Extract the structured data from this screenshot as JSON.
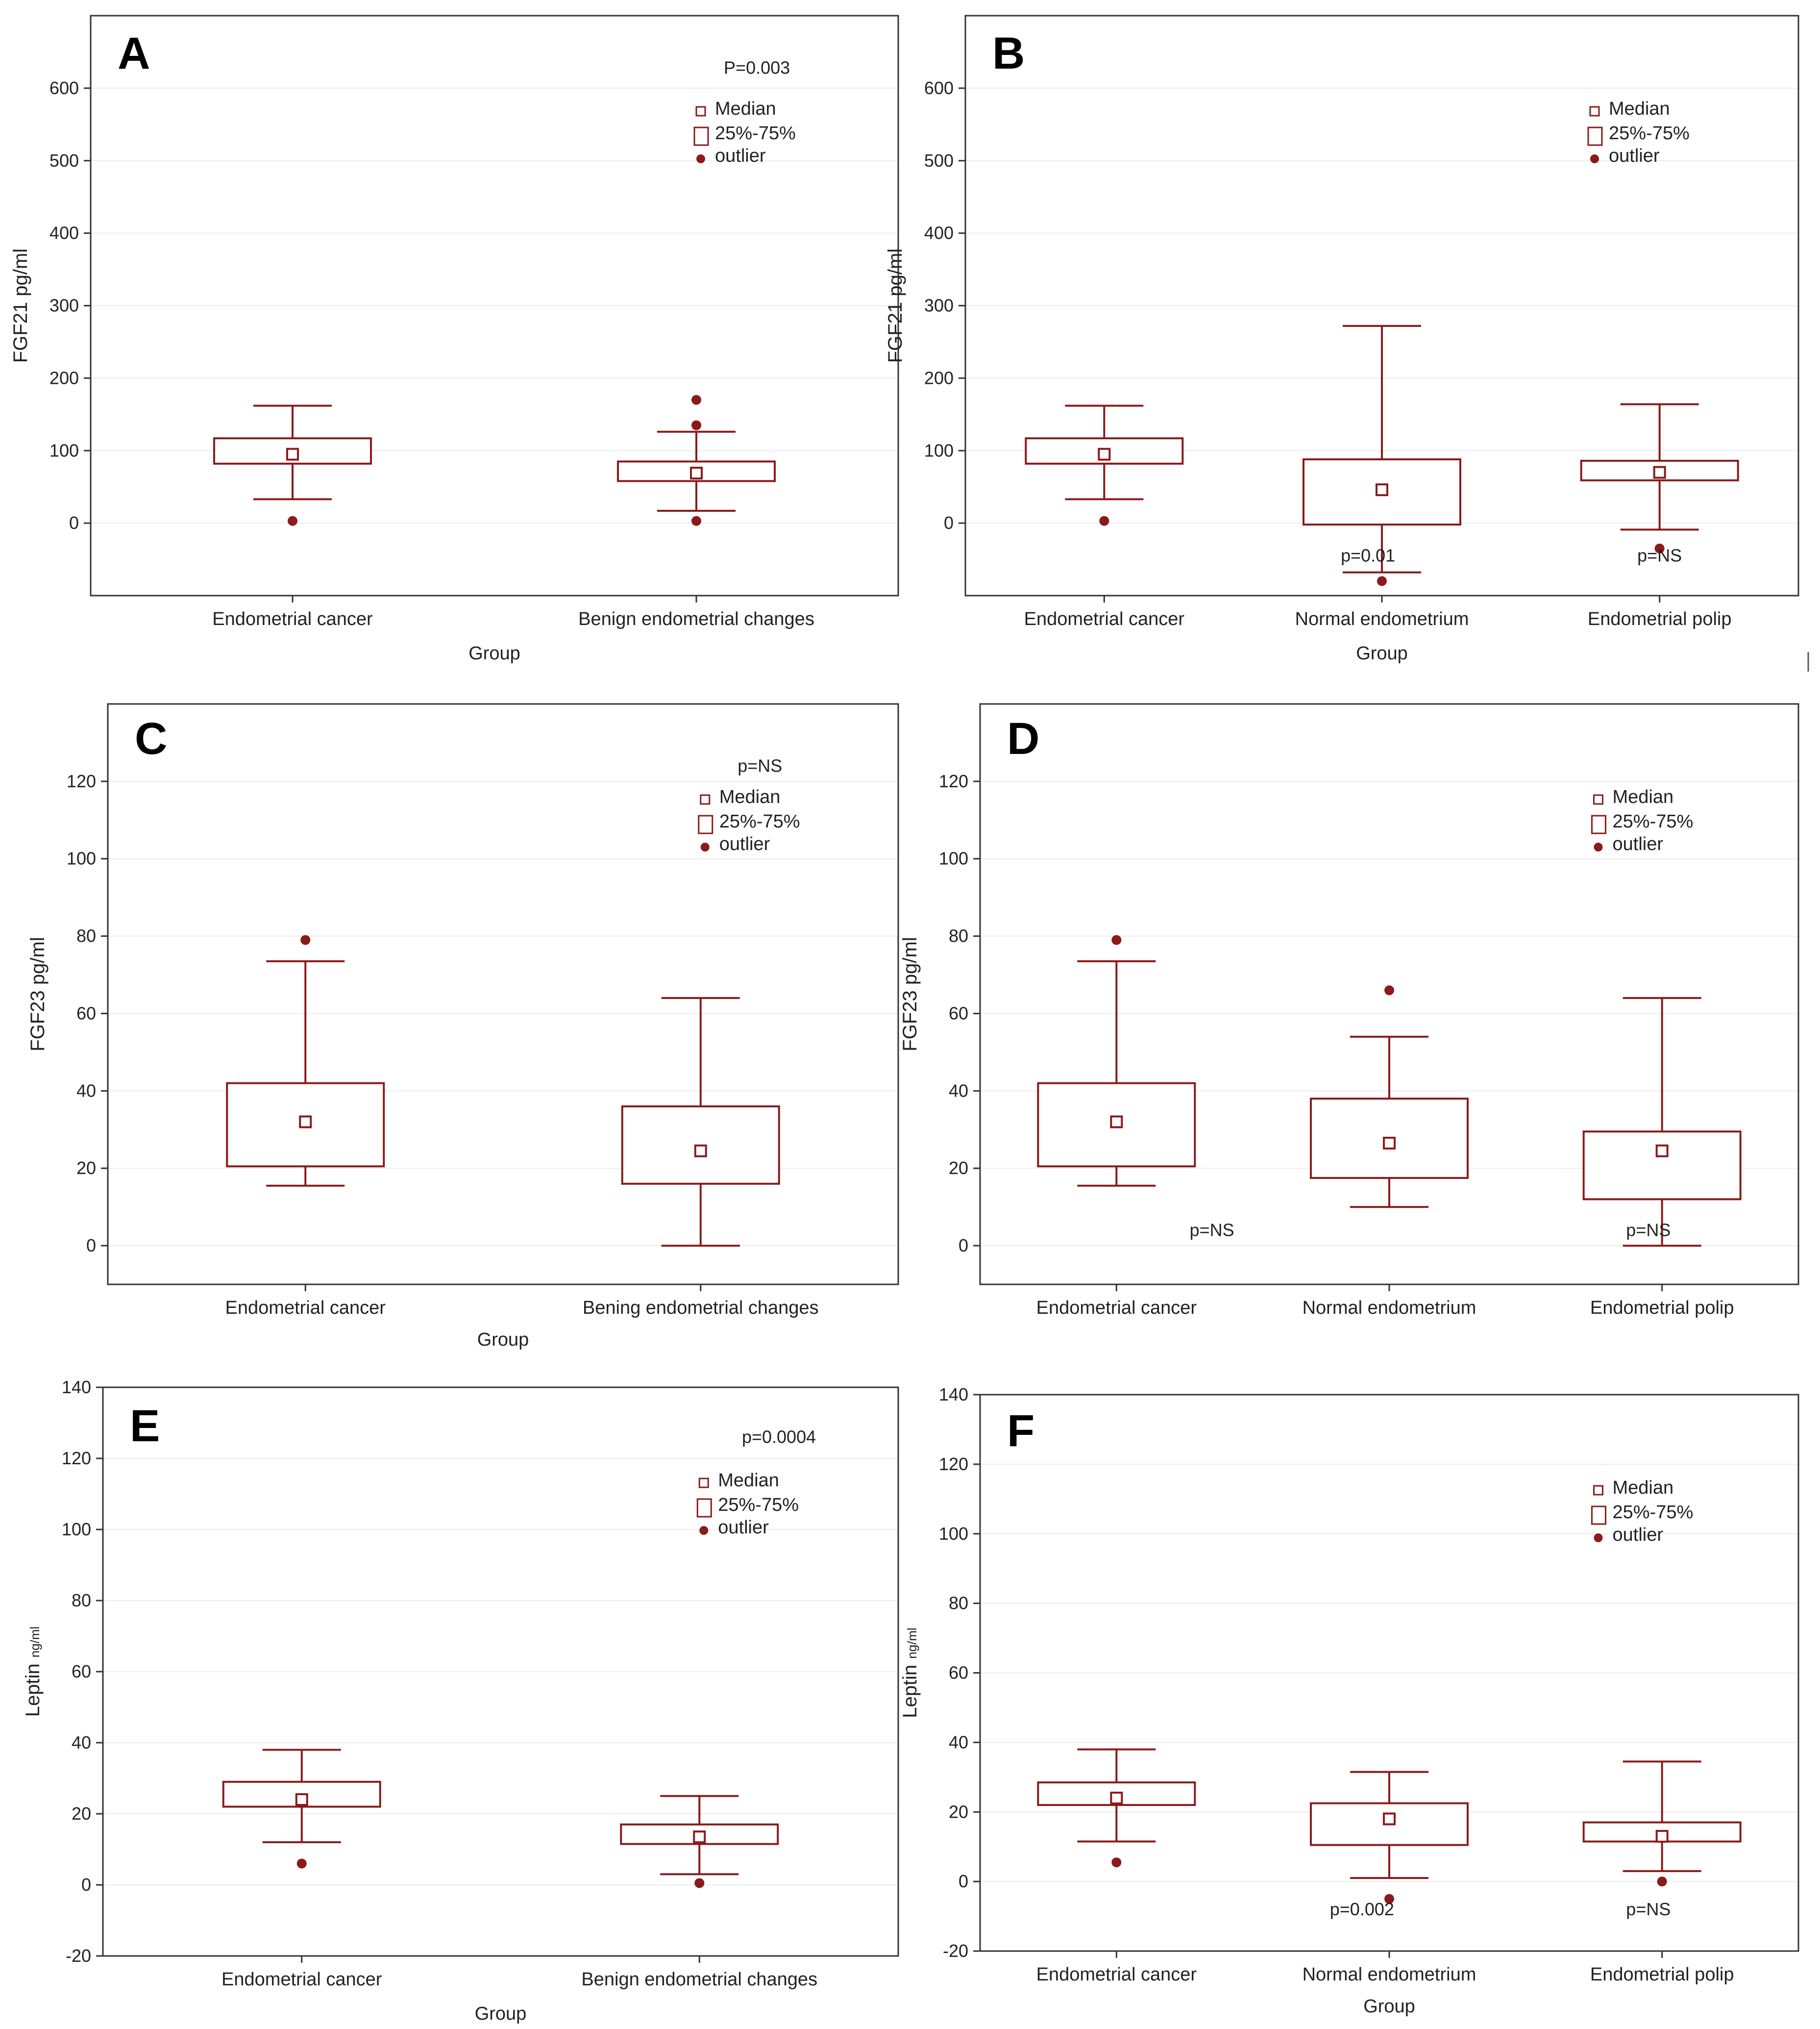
{
  "accent_color": "#8b1a1a",
  "chart_data": [
    {
      "type": "box",
      "panel": "A",
      "ylabel": "FGF21 pg/ml",
      "xlabel": "Group",
      "ylim": [
        -100,
        700
      ],
      "yticks": [
        0,
        100,
        200,
        300,
        400,
        500,
        600
      ],
      "categories": [
        "Endometrial cancer",
        "Benign endometrial changes"
      ],
      "boxes": [
        {
          "median": 95,
          "q1": 82,
          "q3": 117,
          "whisker_low": 33,
          "whisker_high": 162,
          "outliers": [
            3
          ]
        },
        {
          "median": 69,
          "q1": 58,
          "q3": 85,
          "whisker_low": 17,
          "whisker_high": 126,
          "outliers": [
            3,
            135,
            170
          ]
        }
      ],
      "legend": [
        "Median",
        "25%-75%",
        "outlier"
      ],
      "annotations": [
        {
          "text": "P=0.003",
          "x_cat": 1.65,
          "y": 628
        }
      ]
    },
    {
      "type": "box",
      "panel": "B",
      "ylabel": "FGF21 pg/ml",
      "xlabel": "Group",
      "ylim": [
        -100,
        700
      ],
      "yticks": [
        0,
        100,
        200,
        300,
        400,
        500,
        600
      ],
      "categories": [
        "Endometrial cancer",
        "Normal endometrium",
        "Endometrial polip"
      ],
      "boxes": [
        {
          "median": 95,
          "q1": 82,
          "q3": 117,
          "whisker_low": 33,
          "whisker_high": 162,
          "outliers": [
            3
          ]
        },
        {
          "median": 46,
          "q1": -2,
          "q3": 88,
          "whisker_low": -68,
          "whisker_high": 272,
          "outliers": [
            -80
          ]
        },
        {
          "median": 70,
          "q1": 59,
          "q3": 86,
          "whisker_low": -9,
          "whisker_high": 164,
          "outliers": [
            -35
          ]
        }
      ],
      "legend": [
        "Median",
        "25%-75%",
        "outlier"
      ],
      "annotations": [
        {
          "text": "p=0.01",
          "x_cat": 1.45,
          "y": -45
        },
        {
          "text": "p=NS",
          "x_cat": 2.5,
          "y": -45
        }
      ]
    },
    {
      "type": "box",
      "panel": "C",
      "ylabel": "FGF23 pg/ml",
      "xlabel": "Group",
      "ylim": [
        -10,
        140
      ],
      "yticks": [
        0,
        20,
        40,
        60,
        80,
        100,
        120
      ],
      "categories": [
        "Endometrial cancer",
        "Bening endometrial changes"
      ],
      "boxes": [
        {
          "median": 32,
          "q1": 20.5,
          "q3": 42,
          "whisker_low": 15.5,
          "whisker_high": 73.5,
          "outliers": [
            79
          ]
        },
        {
          "median": 24.5,
          "q1": 16,
          "q3": 36,
          "whisker_low": 0,
          "whisker_high": 64,
          "outliers": []
        }
      ],
      "legend": [
        "Median",
        "25%-75%",
        "outlier"
      ],
      "annotations": [
        {
          "text": "p=NS",
          "x_cat": 1.65,
          "y": 124
        }
      ]
    },
    {
      "type": "box",
      "panel": "D",
      "ylabel": "FGF23 pg/ml",
      "xlabel": "",
      "ylim": [
        -10,
        140
      ],
      "yticks": [
        0,
        20,
        40,
        60,
        80,
        100,
        120
      ],
      "categories": [
        "Endometrial cancer",
        "Normal endometrium",
        "Endometrial polip"
      ],
      "boxes": [
        {
          "median": 32,
          "q1": 20.5,
          "q3": 42,
          "whisker_low": 15.5,
          "whisker_high": 73.5,
          "outliers": [
            79
          ]
        },
        {
          "median": 26.5,
          "q1": 17.5,
          "q3": 38,
          "whisker_low": 10,
          "whisker_high": 54,
          "outliers": [
            66
          ]
        },
        {
          "median": 24.5,
          "q1": 12,
          "q3": 29.5,
          "whisker_low": 0,
          "whisker_high": 64,
          "outliers": []
        }
      ],
      "legend": [
        "Median",
        "25%-75%",
        "outlier"
      ],
      "annotations": [
        {
          "text": "p=NS",
          "x_cat": 0.85,
          "y": 4
        },
        {
          "text": "p=NS",
          "x_cat": 2.45,
          "y": 4
        }
      ]
    },
    {
      "type": "box",
      "panel": "E",
      "ylabel": "Leptin",
      "ylabel_unit": "ng/ml",
      "xlabel": "Group",
      "ylim": [
        -20,
        140
      ],
      "yticks": [
        -20,
        0,
        20,
        40,
        60,
        80,
        100,
        120,
        140
      ],
      "categories": [
        "Endometrial cancer",
        "Benign endometrial changes"
      ],
      "boxes": [
        {
          "median": 24,
          "q1": 22,
          "q3": 29,
          "whisker_low": 12,
          "whisker_high": 38,
          "outliers": [
            6
          ]
        },
        {
          "median": 13.5,
          "q1": 11.5,
          "q3": 17,
          "whisker_low": 3,
          "whisker_high": 25,
          "outliers": [
            0.5
          ]
        }
      ],
      "legend": [
        "Median",
        "25%-75%",
        "outlier"
      ],
      "annotations": [
        {
          "text": "p=0.0004",
          "x_cat": 1.7,
          "y": 126
        }
      ]
    },
    {
      "type": "box",
      "panel": "F",
      "ylabel": "Leptin",
      "ylabel_unit": "ng/ml",
      "xlabel": "Group",
      "ylim": [
        -20,
        140
      ],
      "yticks": [
        -20,
        0,
        20,
        40,
        60,
        80,
        100,
        120,
        140
      ],
      "categories": [
        "Endometrial cancer",
        "Normal endometrium",
        "Endometrial polip"
      ],
      "boxes": [
        {
          "median": 24,
          "q1": 22,
          "q3": 28.5,
          "whisker_low": 11.5,
          "whisker_high": 38,
          "outliers": [
            5.5
          ]
        },
        {
          "median": 18,
          "q1": 10.5,
          "q3": 22.5,
          "whisker_low": 1,
          "whisker_high": 31.5,
          "outliers": [
            -5
          ]
        },
        {
          "median": 13,
          "q1": 11.5,
          "q3": 17,
          "whisker_low": 3,
          "whisker_high": 34.5,
          "outliers": [
            0
          ]
        }
      ],
      "legend": [
        "Median",
        "25%-75%",
        "outlier"
      ],
      "annotations": [
        {
          "text": "p=0.002",
          "x_cat": 1.4,
          "y": -8
        },
        {
          "text": "p=NS",
          "x_cat": 2.45,
          "y": -8
        }
      ]
    }
  ]
}
